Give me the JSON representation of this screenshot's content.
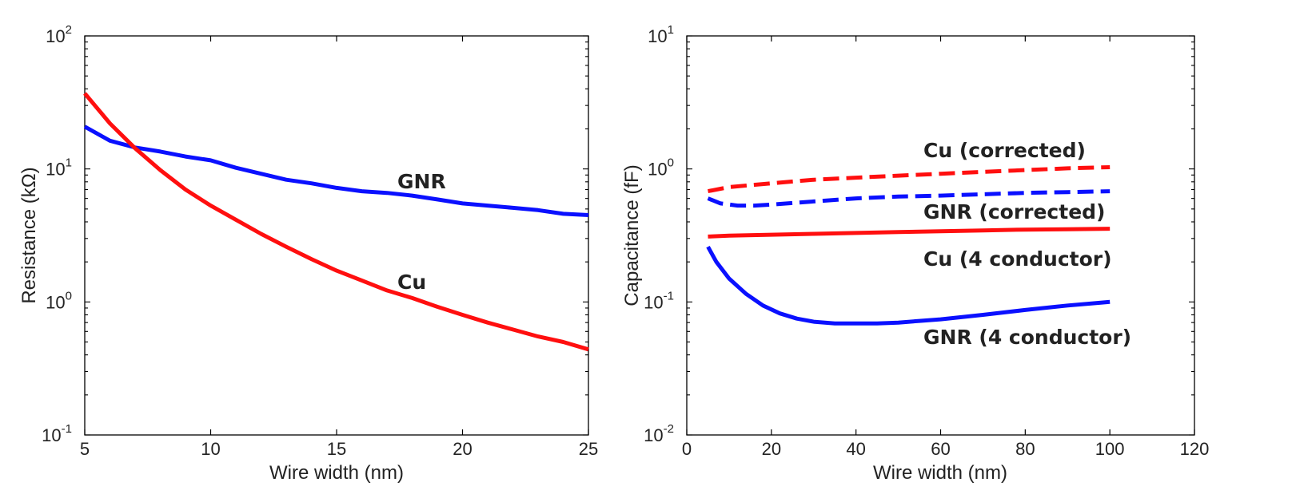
{
  "chart_data": [
    {
      "type": "line",
      "xlabel": "Wire width (nm)",
      "ylabel": "Resistance (kΩ)",
      "xlim": [
        5,
        25
      ],
      "ylim": [
        0.1,
        100
      ],
      "yscale": "log",
      "xticks": [
        5,
        10,
        15,
        20,
        25
      ],
      "xtick_labels": [
        "5",
        "10",
        "15",
        "20",
        "25"
      ],
      "yticks": [
        0.1,
        1,
        10,
        100
      ],
      "ytick_labels": [
        {
          "base": "10",
          "exp": "-1"
        },
        {
          "base": "10",
          "exp": "0"
        },
        {
          "base": "10",
          "exp": "1"
        },
        {
          "base": "10",
          "exp": "2"
        }
      ],
      "grid": false,
      "series": [
        {
          "name": "GNR",
          "color": "#0a10ff",
          "style": "solid",
          "x": [
            5,
            6,
            7,
            8,
            9,
            10,
            11,
            12,
            13,
            14,
            15,
            16,
            17,
            18,
            19,
            20,
            21,
            22,
            23,
            24,
            25
          ],
          "values": [
            20.8,
            16.3,
            14.5,
            13.5,
            12.4,
            11.6,
            10.2,
            9.2,
            8.3,
            7.8,
            7.2,
            6.8,
            6.6,
            6.3,
            5.9,
            5.5,
            5.3,
            5.1,
            4.9,
            4.6,
            4.5
          ]
        },
        {
          "name": "Cu",
          "color": "#ff0f0f",
          "style": "solid",
          "x": [
            5,
            6,
            7,
            8,
            9,
            10,
            11,
            12,
            13,
            14,
            15,
            16,
            17,
            18,
            19,
            20,
            21,
            22,
            23,
            24,
            25
          ],
          "values": [
            37,
            22,
            14.3,
            9.8,
            7.0,
            5.3,
            4.15,
            3.25,
            2.6,
            2.1,
            1.72,
            1.45,
            1.22,
            1.07,
            0.92,
            0.8,
            0.7,
            0.62,
            0.55,
            0.5,
            0.44
          ]
        }
      ],
      "annotations": [
        {
          "text": "GNR",
          "color": "#0a10ff"
        },
        {
          "text": "Cu",
          "color": "#ff0f0f"
        }
      ]
    },
    {
      "type": "line",
      "xlabel": "Wire width (nm)",
      "ylabel": "Capacitance (fF)",
      "xlim": [
        0,
        120
      ],
      "ylim": [
        0.01,
        10
      ],
      "yscale": "log",
      "xticks": [
        0,
        20,
        40,
        60,
        80,
        100,
        120
      ],
      "xtick_labels": [
        "0",
        "20",
        "40",
        "60",
        "80",
        "100",
        "120"
      ],
      "yticks": [
        0.01,
        0.1,
        1,
        10
      ],
      "ytick_labels": [
        {
          "base": "10",
          "exp": "-2"
        },
        {
          "base": "10",
          "exp": "-1"
        },
        {
          "base": "10",
          "exp": "0"
        },
        {
          "base": "10",
          "exp": "1"
        }
      ],
      "grid": false,
      "series": [
        {
          "name": "Cu (corrected)",
          "color": "#ff0f0f",
          "style": "dashed",
          "x": [
            5,
            10,
            20,
            30,
            40,
            50,
            60,
            70,
            80,
            90,
            100
          ],
          "values": [
            0.68,
            0.73,
            0.78,
            0.83,
            0.86,
            0.89,
            0.92,
            0.95,
            0.98,
            1.01,
            1.03
          ]
        },
        {
          "name": "GNR (corrected)",
          "color": "#0a10ff",
          "style": "dashed",
          "x": [
            5,
            8,
            12,
            16,
            20,
            30,
            40,
            50,
            60,
            70,
            80,
            90,
            100
          ],
          "values": [
            0.6,
            0.55,
            0.53,
            0.53,
            0.54,
            0.57,
            0.6,
            0.62,
            0.63,
            0.645,
            0.66,
            0.67,
            0.68
          ]
        },
        {
          "name": "Cu (4 conductor)",
          "color": "#ff0f0f",
          "style": "solid",
          "x": [
            5,
            10,
            20,
            30,
            40,
            50,
            60,
            70,
            80,
            90,
            100
          ],
          "values": [
            0.31,
            0.315,
            0.32,
            0.325,
            0.33,
            0.335,
            0.34,
            0.345,
            0.35,
            0.352,
            0.355
          ]
        },
        {
          "name": "GNR (4 conductor)",
          "color": "#0a10ff",
          "style": "solid",
          "x": [
            5,
            7,
            10,
            14,
            18,
            22,
            26,
            30,
            35,
            40,
            45,
            50,
            55,
            60,
            70,
            80,
            90,
            100
          ],
          "values": [
            0.26,
            0.2,
            0.15,
            0.115,
            0.094,
            0.082,
            0.075,
            0.071,
            0.069,
            0.069,
            0.069,
            0.07,
            0.072,
            0.074,
            0.08,
            0.087,
            0.094,
            0.1
          ]
        }
      ],
      "annotations": [
        {
          "text": "Cu (corrected)",
          "color": "#ff0f0f"
        },
        {
          "text": "GNR (corrected)",
          "color": "#0a10ff"
        },
        {
          "text": "Cu (4 conductor)",
          "color": "#ff0f0f"
        },
        {
          "text": "GNR (4 conductor)",
          "color": "#0a10ff"
        }
      ]
    }
  ]
}
